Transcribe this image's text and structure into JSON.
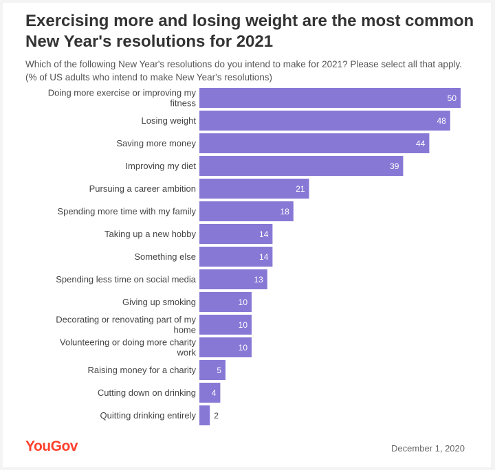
{
  "chart_data": {
    "type": "bar",
    "orientation": "horizontal",
    "title": "Exercising more and losing weight are the most common New Year's resolutions for 2021",
    "subtitle": "Which of the following New Year's resolutions do you intend to make for 2021? Please select all that apply. (% of US adults who intend to make New Year's resolutions)",
    "categories": [
      "Doing more exercise or improving my fitness",
      "Losing weight",
      "Saving more money",
      "Improving my diet",
      "Pursuing a career ambition",
      "Spending more time with my family",
      "Taking up a new hobby",
      "Something else",
      "Spending less time on social media",
      "Giving up smoking",
      "Decorating or renovating part of my home",
      "Volunteering or doing more charity work",
      "Raising money for a charity",
      "Cutting down on drinking",
      "Quitting drinking entirely"
    ],
    "values": [
      50,
      48,
      44,
      39,
      21,
      18,
      14,
      14,
      13,
      10,
      10,
      10,
      5,
      4,
      2
    ],
    "xlim": [
      0,
      50
    ],
    "bar_color": "#8878d6",
    "label_color_inside": "#ffffff",
    "label_color_outside": "#444444"
  },
  "footer": {
    "brand": "YouGov",
    "date": "December 1, 2020"
  },
  "colors": {
    "brand": "#ff412c"
  }
}
